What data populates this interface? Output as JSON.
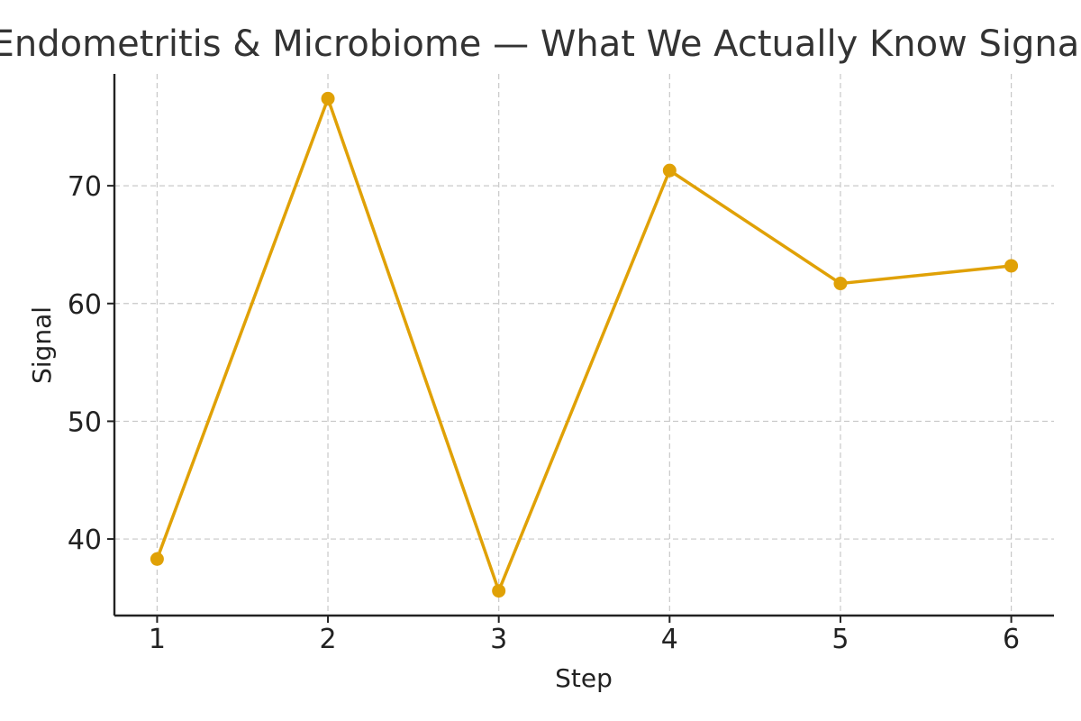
{
  "chart_data": {
    "type": "line",
    "title": "Endometritis & Microbiome — What We Actually Know Signal",
    "xlabel": "Step",
    "ylabel": "Signal",
    "x": [
      1,
      2,
      3,
      4,
      5,
      6
    ],
    "series": [
      {
        "values": [
          38.3,
          77.4,
          35.6,
          71.3,
          61.7,
          63.2
        ]
      }
    ],
    "xlim": [
      0.75,
      6.25
    ],
    "ylim": [
      33.5,
      79.5
    ],
    "xticks": [
      1,
      2,
      3,
      4,
      5,
      6
    ],
    "yticks": [
      40,
      50,
      60,
      70
    ],
    "grid": true,
    "line_color": "#E0A106"
  }
}
